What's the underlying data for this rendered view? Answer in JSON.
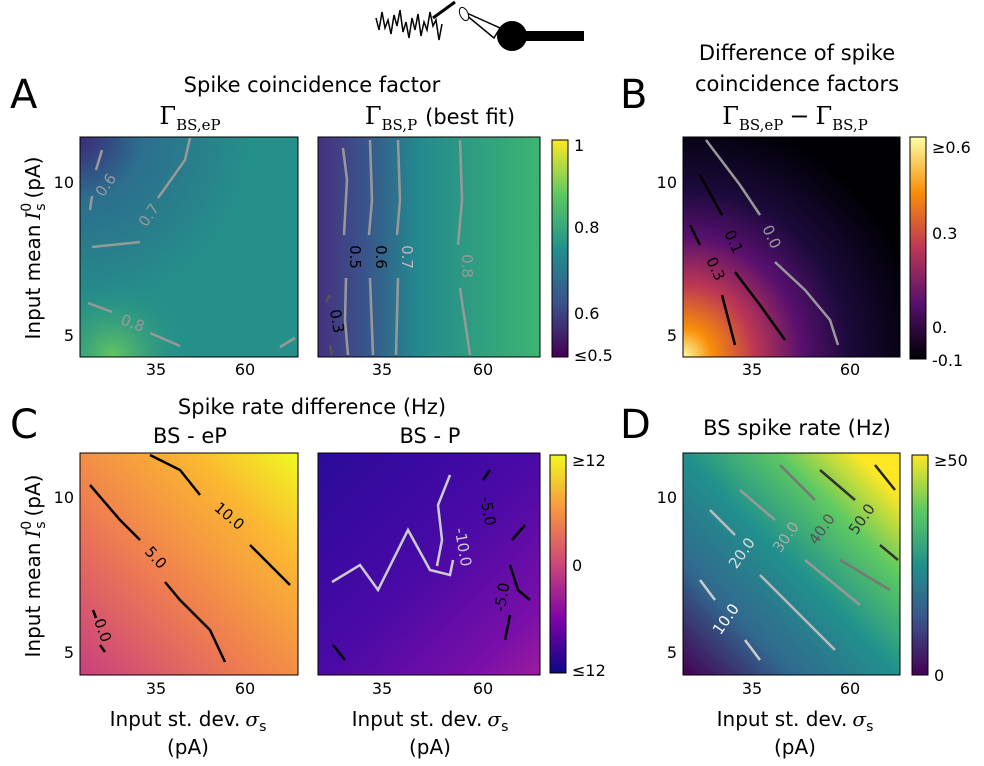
{
  "panels": {
    "A": {
      "letter": "A",
      "title": "Spike coincidence factor",
      "left": {
        "title": {
          "symbol": "Γ",
          "sub": "BS,eP"
        },
        "contour_labels": [
          "0.6",
          "0.7",
          "0.8"
        ]
      },
      "right": {
        "title": {
          "symbol": "Γ",
          "sub": "BS,P",
          "suffix": "(best fit)"
        },
        "contour_labels": [
          "0.5",
          "0.6",
          "0.7",
          "0.8",
          "0.3"
        ]
      },
      "colorbar_ticks": [
        "1",
        "0.8",
        "0.6",
        "≤0.5"
      ]
    },
    "B": {
      "letter": "B",
      "title_lines": [
        "Difference of spike",
        "coincidence factors"
      ],
      "title_math": [
        {
          "symbol": "Γ",
          "sub": "BS,eP"
        },
        "−",
        {
          "symbol": "Γ",
          "sub": "BS,P"
        }
      ],
      "contour_labels": [
        "0.0",
        "0.1",
        "0.3"
      ],
      "colorbar_ticks": [
        "≥0.6",
        "0.3",
        "0.",
        "-0.1"
      ]
    },
    "C": {
      "letter": "C",
      "title": "Spike rate difference (Hz)",
      "left": {
        "title": "BS - eP",
        "contour_labels": [
          "10.0",
          "5.0",
          "0.0"
        ]
      },
      "right": {
        "title": "BS - P",
        "contour_labels": [
          "-5.0",
          "-10.0",
          "-5.0"
        ]
      },
      "colorbar_ticks": [
        "≥12",
        "0",
        "≤12"
      ]
    },
    "D": {
      "letter": "D",
      "title": "BS spike rate (Hz)",
      "contour_labels": [
        "10.0",
        "20.0",
        "30.0",
        "40.0",
        "50.0"
      ],
      "colorbar_ticks": [
        "≥50",
        "0"
      ]
    }
  },
  "axes": {
    "y_label": {
      "text": "Input mean",
      "symbol": "I",
      "sub": "s",
      "sup": "0",
      "unit": "(pA)"
    },
    "x_label": {
      "text": "Input st. dev.",
      "symbol": "σ",
      "sub": "s",
      "unit": "(pA)"
    },
    "y_ticks": [
      "10",
      "5"
    ],
    "x_ticks": [
      "35",
      "60"
    ]
  }
}
